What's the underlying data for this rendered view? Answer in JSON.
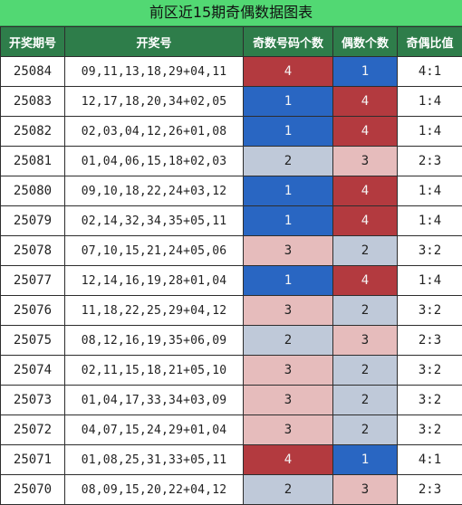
{
  "title": "前区近15期奇偶数据图表",
  "headers": [
    "开奖期号",
    "开奖号",
    "奇数号码个数",
    "偶数个数",
    "奇偶比值"
  ],
  "colors": {
    "title_bg": "#52d873",
    "header_bg": "#2e7d4a",
    "red": "#b33a3f",
    "blue": "#2966c2",
    "pink": "#e6bcbc",
    "gray": "#bfc9d9"
  },
  "rows": [
    {
      "issue": "25084",
      "numbers": "09,11,13,18,29+04,11",
      "odd": "4",
      "even": "1",
      "ratio": "4:1",
      "odd_color": "red",
      "even_color": "blue"
    },
    {
      "issue": "25083",
      "numbers": "12,17,18,20,34+02,05",
      "odd": "1",
      "even": "4",
      "ratio": "1:4",
      "odd_color": "blue",
      "even_color": "red"
    },
    {
      "issue": "25082",
      "numbers": "02,03,04,12,26+01,08",
      "odd": "1",
      "even": "4",
      "ratio": "1:4",
      "odd_color": "blue",
      "even_color": "red"
    },
    {
      "issue": "25081",
      "numbers": "01,04,06,15,18+02,03",
      "odd": "2",
      "even": "3",
      "ratio": "2:3",
      "odd_color": "gray",
      "even_color": "pink"
    },
    {
      "issue": "25080",
      "numbers": "09,10,18,22,24+03,12",
      "odd": "1",
      "even": "4",
      "ratio": "1:4",
      "odd_color": "blue",
      "even_color": "red"
    },
    {
      "issue": "25079",
      "numbers": "02,14,32,34,35+05,11",
      "odd": "1",
      "even": "4",
      "ratio": "1:4",
      "odd_color": "blue",
      "even_color": "red"
    },
    {
      "issue": "25078",
      "numbers": "07,10,15,21,24+05,06",
      "odd": "3",
      "even": "2",
      "ratio": "3:2",
      "odd_color": "pink",
      "even_color": "gray"
    },
    {
      "issue": "25077",
      "numbers": "12,14,16,19,28+01,04",
      "odd": "1",
      "even": "4",
      "ratio": "1:4",
      "odd_color": "blue",
      "even_color": "red"
    },
    {
      "issue": "25076",
      "numbers": "11,18,22,25,29+04,12",
      "odd": "3",
      "even": "2",
      "ratio": "3:2",
      "odd_color": "pink",
      "even_color": "gray"
    },
    {
      "issue": "25075",
      "numbers": "08,12,16,19,35+06,09",
      "odd": "2",
      "even": "3",
      "ratio": "2:3",
      "odd_color": "gray",
      "even_color": "pink"
    },
    {
      "issue": "25074",
      "numbers": "02,11,15,18,21+05,10",
      "odd": "3",
      "even": "2",
      "ratio": "3:2",
      "odd_color": "pink",
      "even_color": "gray"
    },
    {
      "issue": "25073",
      "numbers": "01,04,17,33,34+03,09",
      "odd": "3",
      "even": "2",
      "ratio": "3:2",
      "odd_color": "pink",
      "even_color": "gray"
    },
    {
      "issue": "25072",
      "numbers": "04,07,15,24,29+01,04",
      "odd": "3",
      "even": "2",
      "ratio": "3:2",
      "odd_color": "pink",
      "even_color": "gray"
    },
    {
      "issue": "25071",
      "numbers": "01,08,25,31,33+05,11",
      "odd": "4",
      "even": "1",
      "ratio": "4:1",
      "odd_color": "red",
      "even_color": "blue"
    },
    {
      "issue": "25070",
      "numbers": "08,09,15,20,22+04,12",
      "odd": "2",
      "even": "3",
      "ratio": "2:3",
      "odd_color": "gray",
      "even_color": "pink"
    }
  ]
}
